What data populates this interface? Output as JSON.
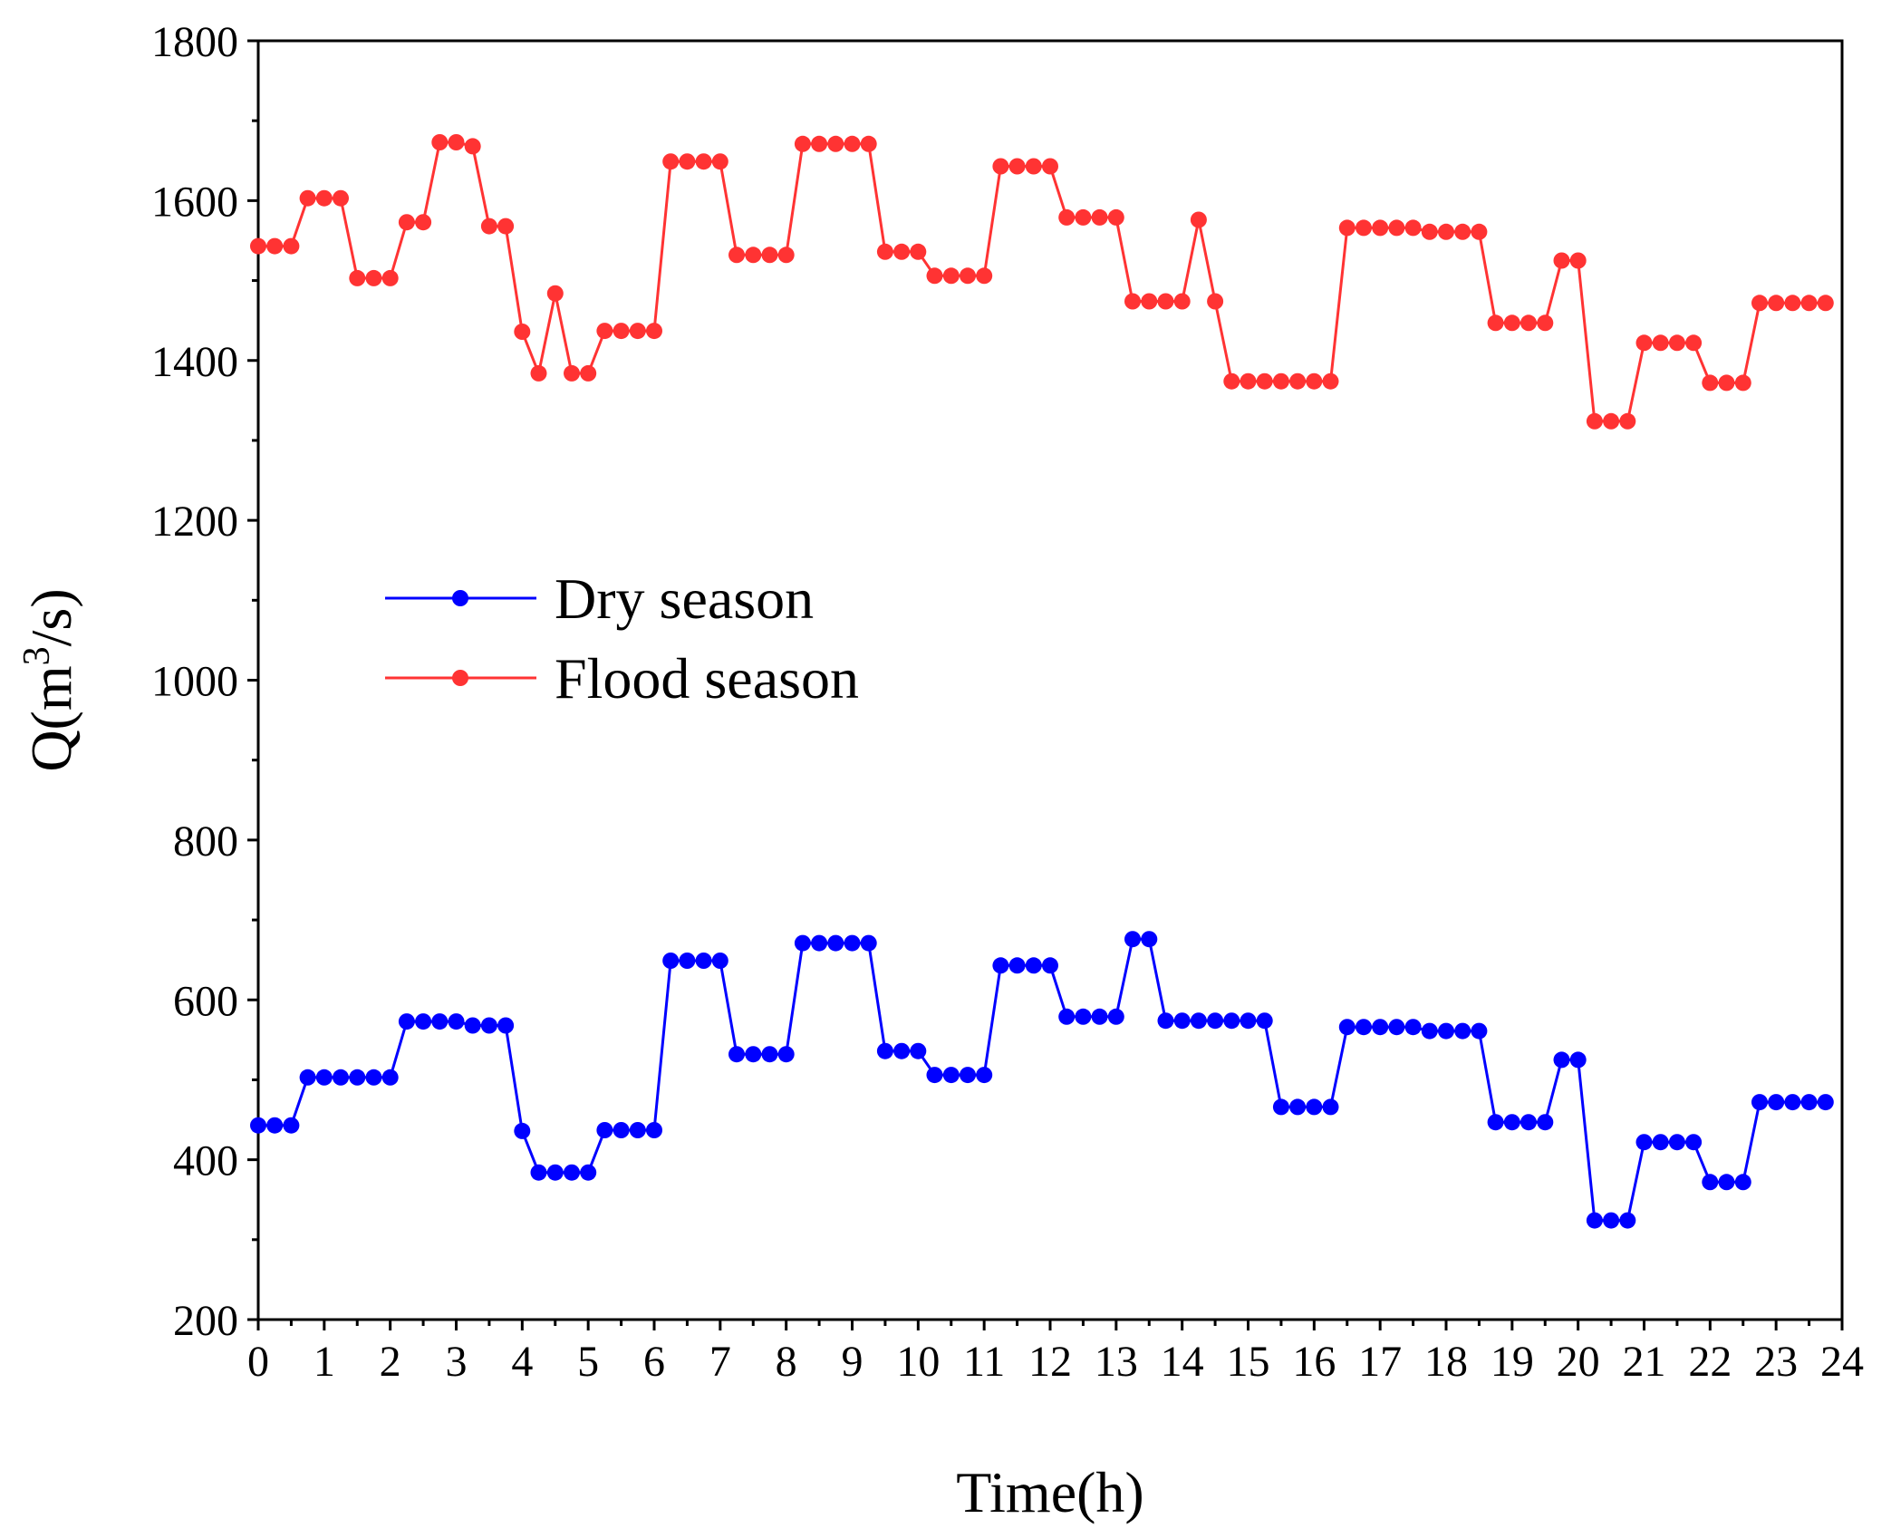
{
  "chart_data": {
    "type": "line",
    "title": "",
    "xlabel": "Time(h)",
    "ylabel_main": "Q(m",
    "ylabel_sup": "3",
    "ylabel_end": "/s)",
    "xlim": [
      0,
      24
    ],
    "ylim": [
      200,
      1800
    ],
    "x_ticks": [
      "0",
      "1",
      "2",
      "3",
      "4",
      "5",
      "6",
      "7",
      "8",
      "9",
      "10",
      "11",
      "12",
      "13",
      "14",
      "15",
      "16",
      "17",
      "18",
      "19",
      "20",
      "21",
      "22",
      "23",
      "24"
    ],
    "y_ticks": [
      "200",
      "400",
      "600",
      "800",
      "1000",
      "1200",
      "1400",
      "1600",
      "1800"
    ],
    "legend_position": "center-left",
    "series": [
      {
        "name": "Dry season",
        "color": "#0000ff",
        "points": [
          [
            0,
            443
          ],
          [
            0.25,
            443
          ],
          [
            0.5,
            443
          ],
          [
            0.75,
            503
          ],
          [
            1,
            503
          ],
          [
            1.25,
            503
          ],
          [
            1.5,
            503
          ],
          [
            1.75,
            503
          ],
          [
            2,
            503
          ],
          [
            2.25,
            573
          ],
          [
            2.5,
            573
          ],
          [
            2.75,
            573
          ],
          [
            3,
            573
          ],
          [
            3.25,
            568
          ],
          [
            3.5,
            568
          ],
          [
            3.75,
            568
          ],
          [
            4,
            436
          ],
          [
            4.25,
            384
          ],
          [
            4.5,
            384
          ],
          [
            4.75,
            384
          ],
          [
            5,
            384
          ],
          [
            5.25,
            437
          ],
          [
            5.5,
            437
          ],
          [
            5.75,
            437
          ],
          [
            6,
            437
          ],
          [
            6.25,
            649
          ],
          [
            6.5,
            649
          ],
          [
            6.75,
            649
          ],
          [
            7,
            649
          ],
          [
            7.25,
            532
          ],
          [
            7.5,
            532
          ],
          [
            7.75,
            532
          ],
          [
            8,
            532
          ],
          [
            8.25,
            671
          ],
          [
            8.5,
            671
          ],
          [
            8.75,
            671
          ],
          [
            9,
            671
          ],
          [
            9.25,
            671
          ],
          [
            9.5,
            536
          ],
          [
            9.75,
            536
          ],
          [
            10,
            536
          ],
          [
            10.25,
            506
          ],
          [
            10.5,
            506
          ],
          [
            10.75,
            506
          ],
          [
            11,
            506
          ],
          [
            11.25,
            643
          ],
          [
            11.5,
            643
          ],
          [
            11.75,
            643
          ],
          [
            12,
            643
          ],
          [
            12.25,
            579
          ],
          [
            12.5,
            579
          ],
          [
            12.75,
            579
          ],
          [
            13,
            579
          ],
          [
            13.25,
            676
          ],
          [
            13.5,
            676
          ],
          [
            13.75,
            574
          ],
          [
            14,
            574
          ],
          [
            14.25,
            574
          ],
          [
            14.5,
            574
          ],
          [
            14.75,
            574
          ],
          [
            15,
            574
          ],
          [
            15.25,
            574
          ],
          [
            15.5,
            466
          ],
          [
            15.75,
            466
          ],
          [
            16,
            466
          ],
          [
            16.25,
            466
          ],
          [
            16.5,
            566
          ],
          [
            16.75,
            566
          ],
          [
            17,
            566
          ],
          [
            17.25,
            566
          ],
          [
            17.5,
            566
          ],
          [
            17.75,
            561
          ],
          [
            18,
            561
          ],
          [
            18.25,
            561
          ],
          [
            18.5,
            561
          ],
          [
            18.75,
            447
          ],
          [
            19,
            447
          ],
          [
            19.25,
            447
          ],
          [
            19.5,
            447
          ],
          [
            19.75,
            525
          ],
          [
            20,
            525
          ],
          [
            20.25,
            324
          ],
          [
            20.5,
            324
          ],
          [
            20.75,
            324
          ],
          [
            21,
            422
          ],
          [
            21.25,
            422
          ],
          [
            21.5,
            422
          ],
          [
            21.75,
            422
          ],
          [
            22,
            372
          ],
          [
            22.25,
            372
          ],
          [
            22.5,
            372
          ],
          [
            22.75,
            472
          ],
          [
            23,
            472
          ],
          [
            23.25,
            472
          ],
          [
            23.5,
            472
          ],
          [
            23.75,
            472
          ]
        ]
      },
      {
        "name": "Flood season",
        "color": "#ff3333",
        "points": [
          [
            0,
            1543
          ],
          [
            0.25,
            1543
          ],
          [
            0.5,
            1543
          ],
          [
            0.75,
            1603
          ],
          [
            1,
            1603
          ],
          [
            1.25,
            1603
          ],
          [
            1.5,
            1503
          ],
          [
            1.75,
            1503
          ],
          [
            2,
            1503
          ],
          [
            2.25,
            1573
          ],
          [
            2.5,
            1573
          ],
          [
            2.75,
            1673
          ],
          [
            3,
            1673
          ],
          [
            3.25,
            1668
          ],
          [
            3.5,
            1568
          ],
          [
            3.75,
            1568
          ],
          [
            4,
            1436
          ],
          [
            4.25,
            1384
          ],
          [
            4.5,
            1484
          ],
          [
            4.75,
            1384
          ],
          [
            5,
            1384
          ],
          [
            5.25,
            1437
          ],
          [
            5.5,
            1437
          ],
          [
            5.75,
            1437
          ],
          [
            6,
            1437
          ],
          [
            6.25,
            1649
          ],
          [
            6.5,
            1649
          ],
          [
            6.75,
            1649
          ],
          [
            7,
            1649
          ],
          [
            7.25,
            1532
          ],
          [
            7.5,
            1532
          ],
          [
            7.75,
            1532
          ],
          [
            8,
            1532
          ],
          [
            8.25,
            1671
          ],
          [
            8.5,
            1671
          ],
          [
            8.75,
            1671
          ],
          [
            9,
            1671
          ],
          [
            9.25,
            1671
          ],
          [
            9.5,
            1536
          ],
          [
            9.75,
            1536
          ],
          [
            10,
            1536
          ],
          [
            10.25,
            1506
          ],
          [
            10.5,
            1506
          ],
          [
            10.75,
            1506
          ],
          [
            11,
            1506
          ],
          [
            11.25,
            1643
          ],
          [
            11.5,
            1643
          ],
          [
            11.75,
            1643
          ],
          [
            12,
            1643
          ],
          [
            12.25,
            1579
          ],
          [
            12.5,
            1579
          ],
          [
            12.75,
            1579
          ],
          [
            13,
            1579
          ],
          [
            13.25,
            1474
          ],
          [
            13.5,
            1474
          ],
          [
            13.75,
            1474
          ],
          [
            14,
            1474
          ],
          [
            14.25,
            1576
          ],
          [
            14.5,
            1474
          ],
          [
            14.75,
            1374
          ],
          [
            15,
            1374
          ],
          [
            15.25,
            1374
          ],
          [
            15.5,
            1374
          ],
          [
            15.75,
            1374
          ],
          [
            16,
            1374
          ],
          [
            16.25,
            1374
          ],
          [
            16.5,
            1566
          ],
          [
            16.75,
            1566
          ],
          [
            17,
            1566
          ],
          [
            17.25,
            1566
          ],
          [
            17.5,
            1566
          ],
          [
            17.75,
            1561
          ],
          [
            18,
            1561
          ],
          [
            18.25,
            1561
          ],
          [
            18.5,
            1561
          ],
          [
            18.75,
            1447
          ],
          [
            19,
            1447
          ],
          [
            19.25,
            1447
          ],
          [
            19.5,
            1447
          ],
          [
            19.75,
            1525
          ],
          [
            20,
            1525
          ],
          [
            20.25,
            1324
          ],
          [
            20.5,
            1324
          ],
          [
            20.75,
            1324
          ],
          [
            21,
            1422
          ],
          [
            21.25,
            1422
          ],
          [
            21.5,
            1422
          ],
          [
            21.75,
            1422
          ],
          [
            22,
            1372
          ],
          [
            22.25,
            1372
          ],
          [
            22.5,
            1372
          ],
          [
            22.75,
            1472
          ],
          [
            23,
            1472
          ],
          [
            23.25,
            1472
          ],
          [
            23.5,
            1472
          ],
          [
            23.75,
            1472
          ]
        ]
      }
    ]
  }
}
